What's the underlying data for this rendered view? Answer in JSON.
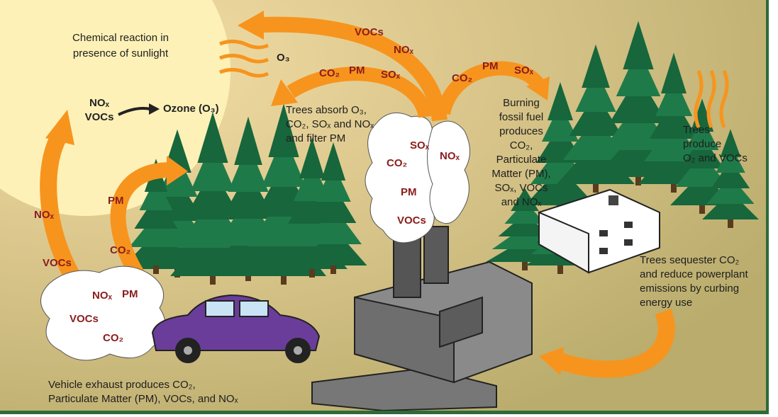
{
  "sun": {
    "caption": [
      "Chemical reaction in",
      "presence of sunlight"
    ],
    "inputs": [
      "NOₓ",
      "VOCs"
    ],
    "output": "Ozone (O₃)"
  },
  "ozone_label": "O₃",
  "arrow_labels": {
    "top": [
      "VOCs",
      "NOₓ"
    ],
    "factory_left": [
      "CO₂",
      "PM",
      "SOₓ"
    ],
    "factory_right": [
      "CO₂",
      "PM",
      "SOₓ"
    ],
    "vehicle_outer": [
      "NOₓ",
      "VOCs"
    ],
    "vehicle_inner": [
      "PM",
      "CO₂"
    ]
  },
  "smoke_labels": [
    "SOₓ",
    "CO₂",
    "PM",
    "VOCs",
    "NOₓ"
  ],
  "exhaust_labels": [
    "NOₓ",
    "PM",
    "VOCs",
    "CO₂"
  ],
  "captions": {
    "trees_absorb": [
      "Trees absorb O₃,",
      "CO₂, SOₓ and NOₓ",
      "and filter PM"
    ],
    "burning": [
      "Burning",
      "fossil fuel",
      "produces",
      "CO₂,",
      "Particulate",
      "Matter (PM),",
      "SOₓ, VOCs",
      "and NOₓ"
    ],
    "trees_produce": [
      "Trees",
      "produce",
      "O₂ and VOCs"
    ],
    "sequester": [
      "Trees sequester CO₂",
      "and reduce powerplant",
      "emissions by curbing",
      "energy use"
    ],
    "vehicle": [
      "Vehicle exhaust produces CO₂,",
      "Particulate Matter (PM), VOCs, and NOₓ"
    ]
  }
}
